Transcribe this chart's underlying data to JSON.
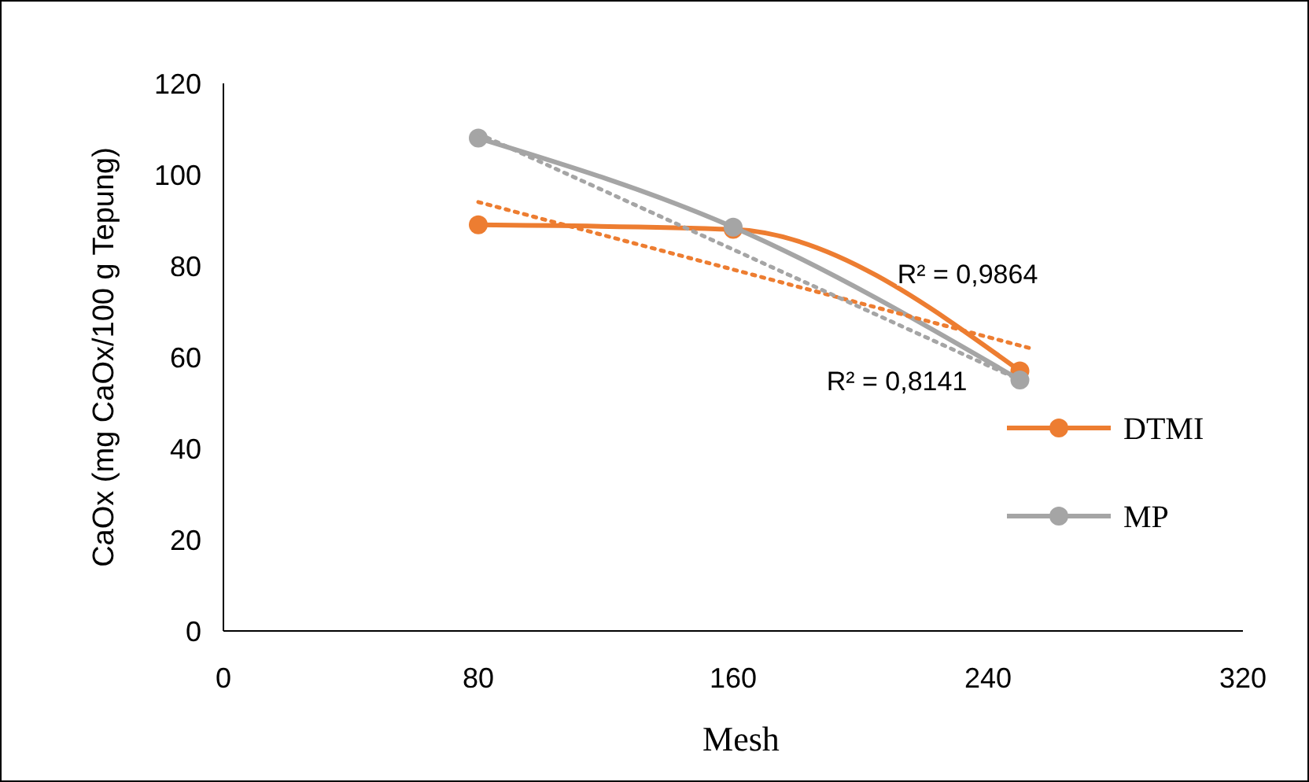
{
  "chart_data": {
    "type": "line",
    "xlabel": "Mesh",
    "ylabel": "CaOx (mg CaOx/100 g Tepung)",
    "xlim": [
      0,
      320
    ],
    "xticks": [
      0,
      80,
      160,
      240,
      320
    ],
    "ylim": [
      0,
      120
    ],
    "yticks": [
      0,
      20,
      40,
      60,
      80,
      100,
      120
    ],
    "grid": false,
    "legend": "right",
    "marker": "circle",
    "line_style": "solid",
    "series": [
      {
        "name": "DTMI",
        "color": "#ed7d31",
        "x": [
          80,
          160,
          250
        ],
        "values": [
          89,
          88,
          57
        ]
      },
      {
        "name": "MP",
        "color": "#a5a5a5",
        "x": [
          80,
          160,
          250
        ],
        "values": [
          108,
          88.5,
          55
        ]
      },
      {
        "type": "line",
        "color": "#ed7d31",
        "x": [
          80,
          253
        ],
        "values": [
          94,
          62
        ],
        "marker": "none",
        "line_style": "dotted"
      },
      {
        "type": "line",
        "color": "#a5a5a5",
        "x": [
          80,
          250
        ],
        "values": [
          109,
          55
        ],
        "marker": "none",
        "line_style": "dotted"
      }
    ],
    "annotations": [
      "R² = 0,9864",
      "R² = 0,8141"
    ]
  }
}
